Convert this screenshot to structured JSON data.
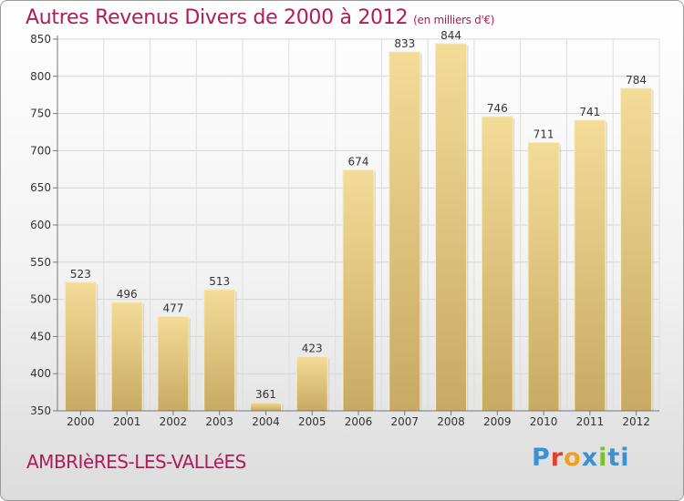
{
  "header": {
    "title": "Autres Revenus Divers de 2000 à 2012",
    "subtitle": "(en milliers d'€)"
  },
  "footer": {
    "location": "AMBRIèRES-LES-VALLéES",
    "logo": [
      "P",
      "r",
      "o",
      "x",
      "i",
      "ti"
    ]
  },
  "colors": {
    "bar_light": "#f3dc98",
    "bar_dark": "#c8aa62",
    "title": "#b01c5a"
  },
  "chart_data": {
    "type": "bar",
    "title": "Autres Revenus Divers de 2000 à 2012",
    "subtitle": "(en milliers d'€)",
    "categories": [
      "2000",
      "2001",
      "2002",
      "2003",
      "2004",
      "2005",
      "2006",
      "2007",
      "2008",
      "2009",
      "2010",
      "2011",
      "2012"
    ],
    "values": [
      523,
      496,
      477,
      513,
      361,
      423,
      674,
      833,
      844,
      746,
      711,
      741,
      784
    ],
    "ylim": [
      350,
      850
    ],
    "yticks": [
      350,
      400,
      450,
      500,
      550,
      600,
      650,
      700,
      750,
      800,
      850
    ],
    "grid": true
  }
}
